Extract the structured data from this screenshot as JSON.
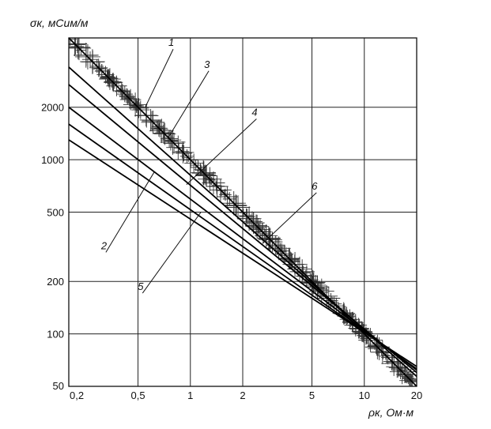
{
  "chart_data": {
    "type": "line",
    "title": "",
    "scale": {
      "x": "log",
      "y": "log"
    },
    "xlim": [
      0.2,
      20
    ],
    "ylim": [
      50,
      5000
    ],
    "grid": true,
    "xlabel": "ρк, Ом·м",
    "ylabel": "σк, мСим/м",
    "x_ticks": [
      {
        "value": 0.2,
        "label": "0,2"
      },
      {
        "value": 0.5,
        "label": "0,5"
      },
      {
        "value": 1,
        "label": "1"
      },
      {
        "value": 2,
        "label": "2"
      },
      {
        "value": 5,
        "label": "5"
      },
      {
        "value": 10,
        "label": "10"
      },
      {
        "value": 20,
        "label": "20"
      }
    ],
    "y_ticks": [
      {
        "value": 50,
        "label": "50"
      },
      {
        "value": 100,
        "label": "100"
      },
      {
        "value": 200,
        "label": "200"
      },
      {
        "value": 500,
        "label": "500"
      },
      {
        "value": 1000,
        "label": "1000"
      },
      {
        "value": 2000,
        "label": "2000"
      }
    ],
    "series": [
      {
        "name": "1",
        "x": [
          0.2,
          20
        ],
        "y": [
          5000,
          50
        ]
      },
      {
        "name": "2",
        "x": [
          0.2,
          20
        ],
        "y": [
          1300,
          65
        ]
      },
      {
        "name": "3",
        "x": [
          0.2,
          20
        ],
        "y": [
          3400,
          57
        ]
      },
      {
        "name": "4",
        "x": [
          0.2,
          20
        ],
        "y": [
          2000,
          62
        ]
      },
      {
        "name": "5",
        "x": [
          0.2,
          20
        ],
        "y": [
          1600,
          63
        ]
      },
      {
        "name": "6",
        "x": [
          0.2,
          20
        ],
        "y": [
          2700,
          60
        ]
      }
    ],
    "annotations": [
      {
        "text": "1",
        "at": [
          0.78,
          4400
        ],
        "leader_to": [
          0.55,
          2000
        ]
      },
      {
        "text": "3",
        "at": [
          1.25,
          3300
        ],
        "leader_to": [
          0.75,
          1350
        ]
      },
      {
        "text": "4",
        "at": [
          2.35,
          1750
        ],
        "leader_to": [
          0.95,
          720
        ]
      },
      {
        "text": "2",
        "at": [
          0.32,
          300
        ],
        "leader_to": [
          0.62,
          850
        ]
      },
      {
        "text": "5",
        "at": [
          0.52,
          175
        ],
        "leader_to": [
          1.15,
          500
        ]
      },
      {
        "text": "6",
        "at": [
          5.2,
          660
        ],
        "leader_to": [
          2.6,
          330
        ]
      }
    ]
  }
}
